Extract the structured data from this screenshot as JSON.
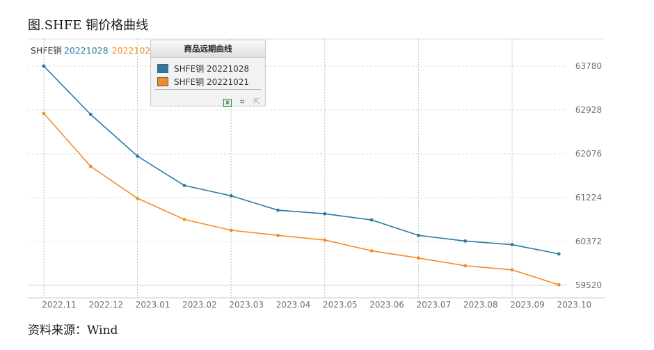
{
  "figure_title": "图.SHFE 铜价格曲线",
  "source_note": "资料来源：Wind",
  "chart_header": {
    "label": "SHFE铜",
    "date_1": "20221028",
    "date_2": "20221021"
  },
  "legend": {
    "title": "商品远期曲线",
    "items": [
      {
        "label": "SHFE铜 20221028",
        "color": "#2a7aa6"
      },
      {
        "label": "SHFE铜 20221021",
        "color": "#f28c28"
      }
    ],
    "tools": [
      "excel-export-icon",
      "crop-icon",
      "expand-icon"
    ]
  },
  "colors": {
    "series_1028": "#2a7aa6",
    "series_1021": "#f28c28",
    "grid": "#c8c8c8",
    "axis_text": "#707070"
  },
  "chart_data": {
    "type": "line",
    "title": "",
    "xlabel": "",
    "ylabel": "",
    "x_ticks": [
      "2022.11",
      "2022.12",
      "2023.01",
      "2023.02",
      "2023.03",
      "2023.04",
      "2023.05",
      "2023.06",
      "2023.07",
      "2023.08",
      "2023.09",
      "2023.10"
    ],
    "y_ticks": [
      59520,
      60372,
      61224,
      62076,
      62928,
      63780
    ],
    "ylim": [
      59300,
      64000
    ],
    "y_axis_side": "right",
    "grid": {
      "vertical": true,
      "horizontal": "dashed"
    },
    "legend_position": "top-left",
    "series": [
      {
        "name": "SHFE铜 20221028",
        "x": [
          "2022.11",
          "2022.12",
          "2023.01",
          "2023.02",
          "2023.03",
          "2023.04",
          "2023.05",
          "2023.06",
          "2023.07",
          "2023.08",
          "2023.09",
          "2023.10"
        ],
        "values": [
          63780,
          62840,
          62030,
          61460,
          61260,
          60980,
          60910,
          60790,
          60490,
          60380,
          60310,
          60130
        ]
      },
      {
        "name": "SHFE铜 20221021",
        "x": [
          "2022.11",
          "2022.12",
          "2023.01",
          "2023.02",
          "2023.03",
          "2023.04",
          "2023.05",
          "2023.06",
          "2023.07",
          "2023.08",
          "2023.09",
          "2023.10"
        ],
        "values": [
          62860,
          61830,
          61210,
          60800,
          60590,
          60490,
          60400,
          60190,
          60050,
          59900,
          59820,
          59530
        ]
      }
    ]
  }
}
